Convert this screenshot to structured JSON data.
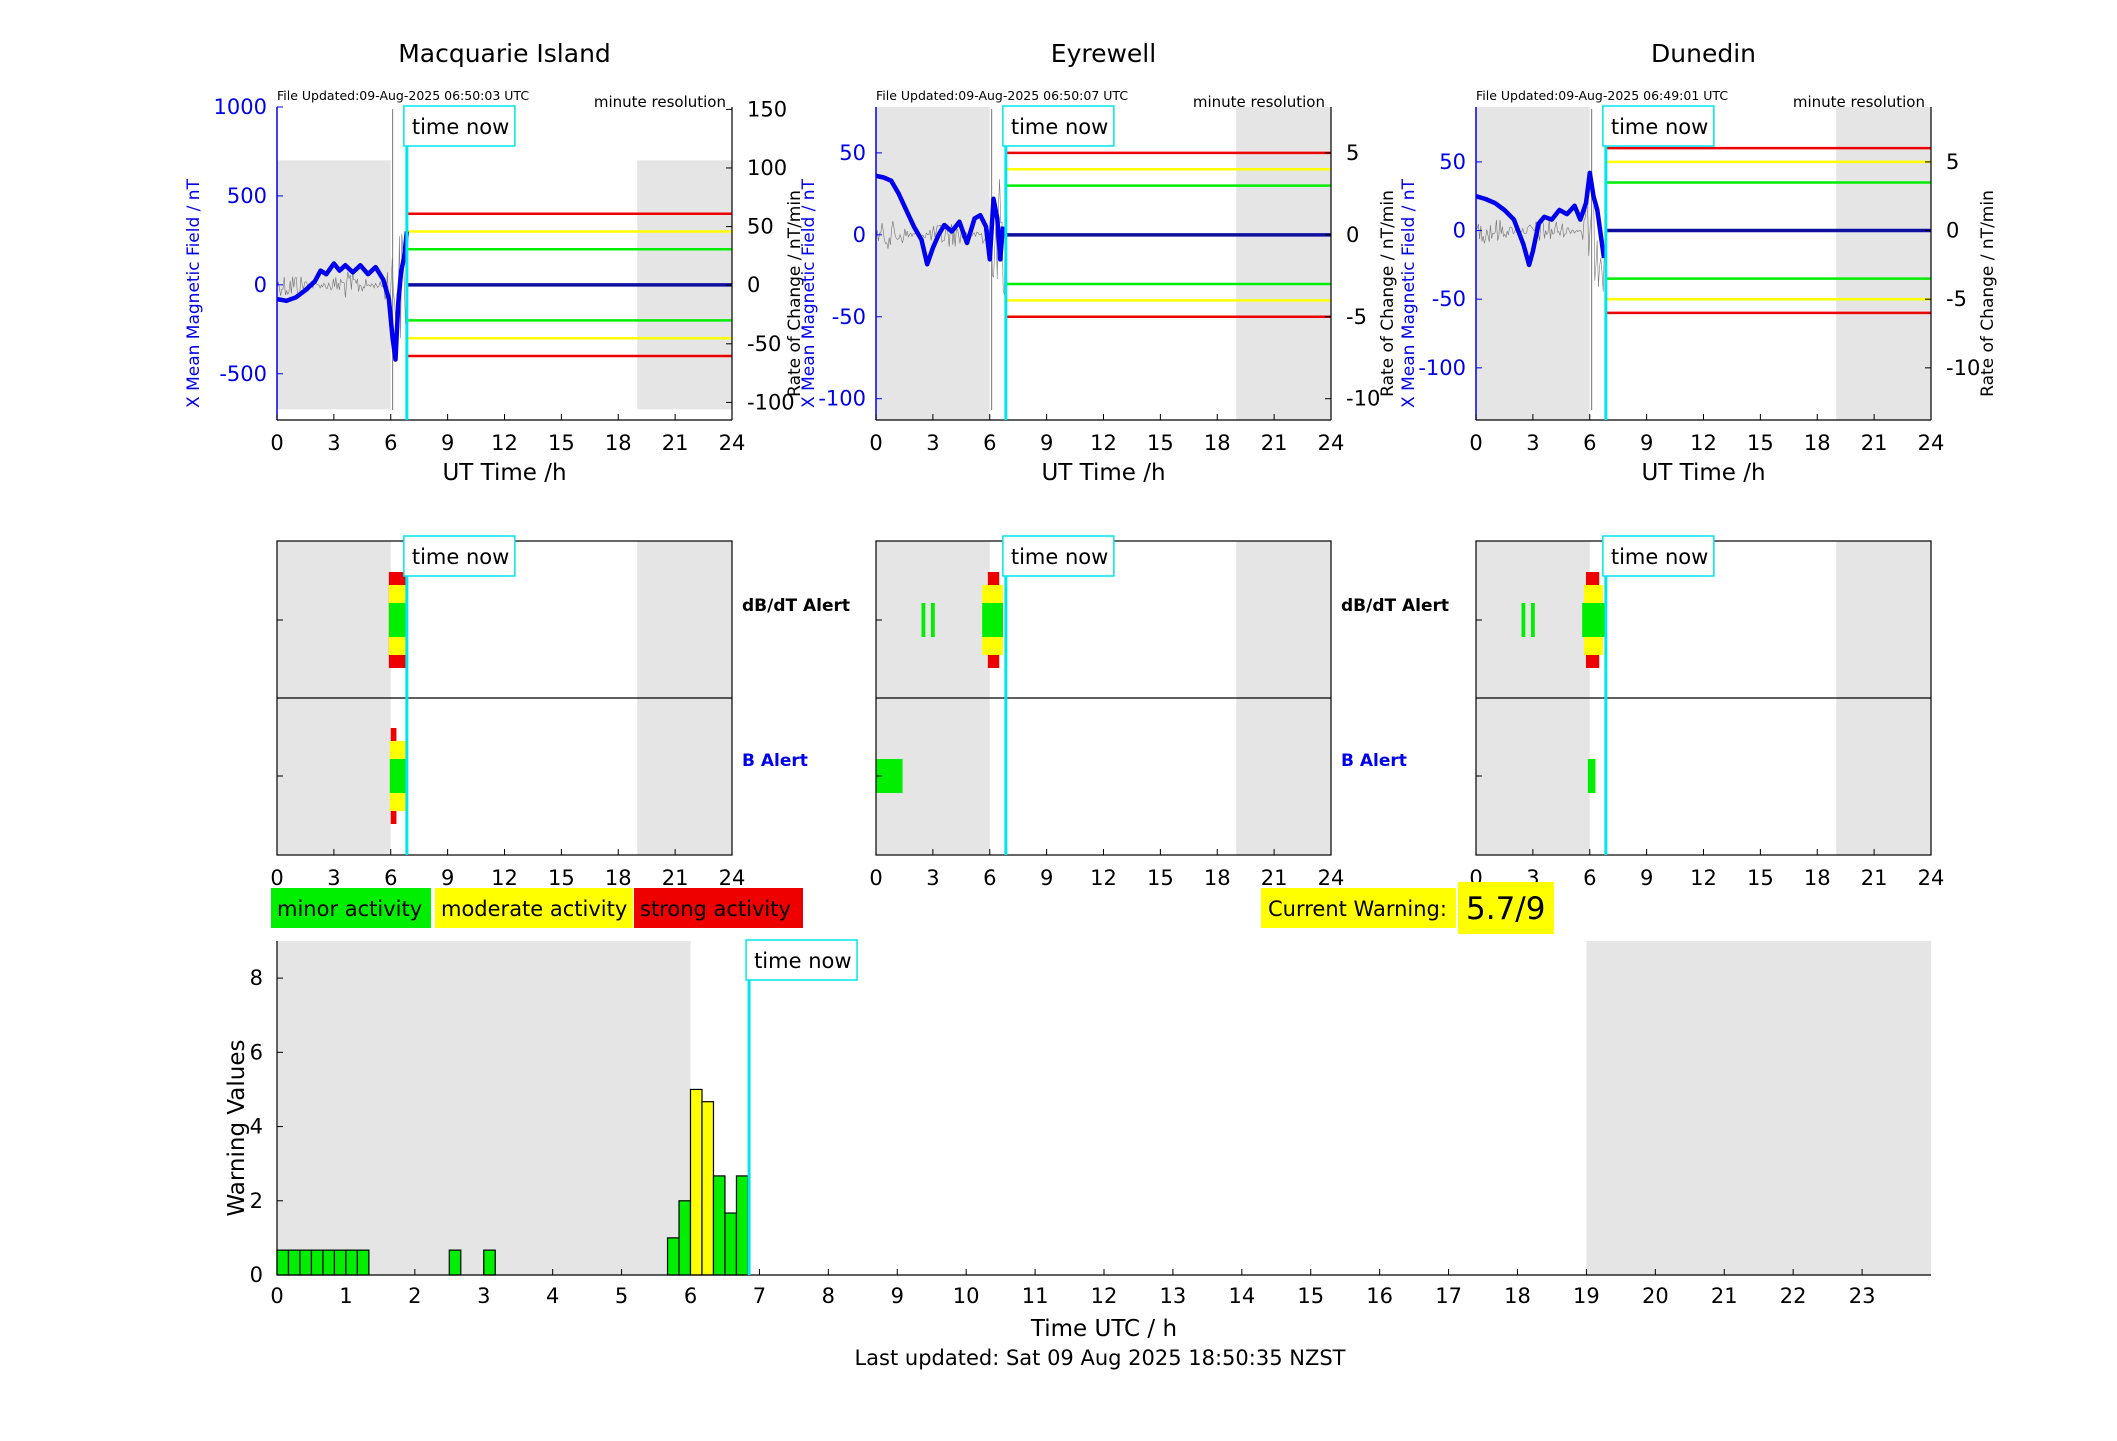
{
  "colors": {
    "blue": "#0000ee",
    "cyan": "#00e5ee",
    "red": "#ee0000",
    "yellow": "#ffff00",
    "green": "#00ee00",
    "night": "#e5e5e5",
    "black": "#000000"
  },
  "labels": {
    "time_now": "time now",
    "minute_resolution": "minute resolution",
    "ut_time": "UT Time /h",
    "db_alert": "dB/dT Alert",
    "b_alert": "B Alert",
    "rate_label_1": "Rate of Change / nT/min",
    "rate_label_2": "Rate of Change / nT/min",
    "rate_label_3": "Rate of Change / nT/min",
    "x_field_1": "X Mean Magnetic Field / nT",
    "x_field_2": "X Mean Magnetic Field / nT",
    "x_field_3": "X Mean Magnetic Field / nT"
  },
  "legend": {
    "minor": "minor activity",
    "moderate": "moderate activity",
    "strong": "strong activity"
  },
  "current_warning": {
    "label": "Current Warning:",
    "value": "5.7/9"
  },
  "footer": {
    "last_updated": "Last updated: Sat 09 Aug 2025 18:50:35 NZST"
  },
  "chart_data": [
    {
      "type": "line",
      "station": "Macquarie Island",
      "file_updated": "File Updated:09-Aug-2025 06:50:03 UTC",
      "xlabel": "UT Time /h",
      "ylabel": "X Mean Magnetic Field / nT",
      "y2label": "Rate of Change / nT/min",
      "xlim": [
        0,
        24
      ],
      "xticks": [
        0,
        3,
        6,
        9,
        12,
        15,
        18,
        21,
        24
      ],
      "ylim": [
        -760,
        1000
      ],
      "yticks": [
        -500,
        0,
        500,
        1000
      ],
      "y2lim": [
        -115,
        152
      ],
      "y2ticks": [
        -100,
        -50,
        0,
        50,
        100,
        150
      ],
      "y2_tick_labels": [
        "-100",
        "-50",
        "0",
        "50",
        "100",
        "150"
      ],
      "night_shading": [
        [
          0,
          6
        ],
        [
          19,
          24
        ]
      ],
      "night_ylim": [
        -700,
        700
      ],
      "time_now": 6.85,
      "thresholds": [
        {
          "color": "red",
          "values": [
            400,
            -400
          ]
        },
        {
          "color": "yellow",
          "values": [
            300,
            -300
          ]
        },
        {
          "color": "green",
          "values": [
            200,
            -200
          ]
        }
      ],
      "series": [
        {
          "color": "blue",
          "x": [
            0,
            0.5,
            1,
            1.5,
            2,
            2.3,
            2.6,
            3,
            3.3,
            3.6,
            4,
            4.4,
            4.8,
            5.2,
            5.6,
            5.9,
            6.1,
            6.25,
            6.4,
            6.55,
            6.7,
            6.85
          ],
          "y": [
            -80,
            -90,
            -70,
            -30,
            20,
            80,
            60,
            120,
            80,
            110,
            70,
            110,
            60,
            100,
            30,
            -80,
            -300,
            -420,
            -100,
            80,
            150,
            300
          ]
        }
      ]
    },
    {
      "type": "line",
      "station": "Eyrewell",
      "file_updated": "File Updated:09-Aug-2025 06:50:07 UTC",
      "xlabel": "UT Time /h",
      "ylabel": "X Mean Magnetic Field / nT",
      "y2label": "Rate of Change / nT/min",
      "xlim": [
        0,
        24
      ],
      "xticks": [
        0,
        3,
        6,
        9,
        12,
        15,
        18,
        21,
        24
      ],
      "ylim": [
        -113,
        78
      ],
      "yticks": [
        -100,
        -50,
        0,
        50
      ],
      "y2lim": [
        -11.3,
        7.8
      ],
      "y2ticks": [
        -10,
        -5,
        0,
        5
      ],
      "y2_tick_labels": [
        "-10",
        "-5",
        "0",
        "5"
      ],
      "night_shading": [
        [
          0,
          6
        ],
        [
          19,
          24
        ]
      ],
      "night_ylim": [
        -113,
        78
      ],
      "time_now": 6.85,
      "thresholds": [
        {
          "color": "red",
          "values": [
            50,
            -50
          ]
        },
        {
          "color": "yellow",
          "values": [
            40,
            -40
          ]
        },
        {
          "color": "green",
          "values": [
            30,
            -30
          ]
        }
      ],
      "series": [
        {
          "color": "blue",
          "x": [
            0,
            0.4,
            0.8,
            1.2,
            1.6,
            2.0,
            2.4,
            2.7,
            3.0,
            3.3,
            3.6,
            4.0,
            4.4,
            4.8,
            5.2,
            5.5,
            5.8,
            6.0,
            6.2,
            6.4,
            6.55,
            6.7
          ],
          "y": [
            36,
            35,
            33,
            25,
            15,
            5,
            -3,
            -18,
            -8,
            0,
            6,
            2,
            8,
            -5,
            10,
            12,
            5,
            -15,
            22,
            10,
            -15,
            5
          ]
        }
      ]
    },
    {
      "type": "line",
      "station": "Dunedin",
      "file_updated": "File Updated:09-Aug-2025 06:49:01 UTC",
      "xlabel": "UT Time /h",
      "ylabel": "X Mean Magnetic Field / nT",
      "y2label": "Rate of Change / nT/min",
      "xlim": [
        0,
        24
      ],
      "xticks": [
        0,
        3,
        6,
        9,
        12,
        15,
        18,
        21,
        24
      ],
      "ylim": [
        -138,
        90
      ],
      "yticks": [
        -100,
        -50,
        0,
        50
      ],
      "y2lim": [
        -13.8,
        9.0
      ],
      "y2ticks": [
        -10,
        -5,
        0,
        5
      ],
      "y2_tick_labels": [
        "-10",
        "-5",
        "0",
        "5"
      ],
      "night_shading": [
        [
          0,
          6
        ],
        [
          19,
          24
        ]
      ],
      "night_ylim": [
        -138,
        90
      ],
      "time_now": 6.85,
      "thresholds": [
        {
          "color": "red",
          "values": [
            60,
            -60
          ]
        },
        {
          "color": "yellow",
          "values": [
            50,
            -50
          ]
        },
        {
          "color": "green",
          "values": [
            35,
            -35
          ]
        }
      ],
      "series": [
        {
          "color": "blue",
          "x": [
            0,
            0.5,
            1,
            1.5,
            2.0,
            2.5,
            2.8,
            3.0,
            3.3,
            3.6,
            4.0,
            4.4,
            4.8,
            5.2,
            5.5,
            5.8,
            6.0,
            6.2,
            6.4,
            6.6,
            6.75
          ],
          "y": [
            25,
            23,
            20,
            15,
            8,
            -10,
            -25,
            -15,
            5,
            10,
            8,
            15,
            12,
            18,
            8,
            20,
            42,
            25,
            15,
            -5,
            -20
          ]
        }
      ]
    },
    {
      "type": "heatmap",
      "station": "Macquarie Island",
      "rows": [
        "dB/dT Alert",
        "B Alert"
      ],
      "xlim": [
        0,
        24
      ],
      "xticks": [
        0,
        3,
        6,
        9,
        12,
        15,
        18,
        21,
        24
      ],
      "time_now": 6.85,
      "night_shading": [
        [
          0,
          6
        ],
        [
          19,
          24
        ]
      ],
      "alerts": {
        "db": [
          {
            "x0": 5.9,
            "x1": 6.8,
            "level": "strong"
          },
          {
            "x0": 5.9,
            "x1": 6.8,
            "level": "moderate"
          },
          {
            "x0": 5.9,
            "x1": 6.8,
            "level": "minor"
          }
        ],
        "b": [
          {
            "x0": 6.0,
            "x1": 6.3,
            "level": "strong"
          },
          {
            "x0": 5.95,
            "x1": 6.8,
            "level": "moderate"
          },
          {
            "x0": 5.95,
            "x1": 6.8,
            "level": "minor"
          }
        ]
      }
    },
    {
      "type": "heatmap",
      "station": "Eyrewell",
      "rows": [
        "dB/dT Alert",
        "B Alert"
      ],
      "xlim": [
        0,
        24
      ],
      "xticks": [
        0,
        3,
        6,
        9,
        12,
        15,
        18,
        21,
        24
      ],
      "time_now": 6.85,
      "night_shading": [
        [
          0,
          6
        ],
        [
          19,
          24
        ]
      ],
      "alerts": {
        "db": [
          {
            "x0": 2.4,
            "x1": 2.6,
            "level": "minor"
          },
          {
            "x0": 2.9,
            "x1": 3.1,
            "level": "minor"
          },
          {
            "x0": 5.9,
            "x1": 6.5,
            "level": "strong"
          },
          {
            "x0": 5.6,
            "x1": 6.7,
            "level": "moderate"
          },
          {
            "x0": 5.6,
            "x1": 6.7,
            "level": "minor"
          }
        ],
        "b": [
          {
            "x0": 0,
            "x1": 1.4,
            "level": "minor"
          }
        ]
      }
    },
    {
      "type": "heatmap",
      "station": "Dunedin",
      "rows": [
        "dB/dT Alert",
        "B Alert"
      ],
      "xlim": [
        0,
        24
      ],
      "xticks": [
        0,
        3,
        6,
        9,
        12,
        15,
        18,
        21,
        24
      ],
      "time_now": 6.85,
      "night_shading": [
        [
          0,
          6
        ],
        [
          19,
          24
        ]
      ],
      "alerts": {
        "db": [
          {
            "x0": 2.4,
            "x1": 2.6,
            "level": "minor"
          },
          {
            "x0": 2.9,
            "x1": 3.1,
            "level": "minor"
          },
          {
            "x0": 5.8,
            "x1": 6.5,
            "level": "strong"
          },
          {
            "x0": 5.7,
            "x1": 6.7,
            "level": "moderate"
          },
          {
            "x0": 5.6,
            "x1": 6.8,
            "level": "minor"
          }
        ],
        "b": [
          {
            "x0": 5.9,
            "x1": 6.3,
            "level": "minor"
          }
        ]
      }
    },
    {
      "type": "bar",
      "xlabel": "Time UTC / h",
      "ylabel": "Warning Values",
      "xlim": [
        0,
        24
      ],
      "xticks": [
        0,
        1,
        2,
        3,
        4,
        5,
        6,
        7,
        8,
        9,
        10,
        11,
        12,
        13,
        14,
        15,
        16,
        17,
        18,
        19,
        20,
        21,
        22,
        23
      ],
      "ylim": [
        0,
        9
      ],
      "yticks": [
        0,
        2,
        4,
        6,
        8
      ],
      "time_now": 6.85,
      "night_shading": [
        [
          0,
          6
        ],
        [
          19,
          24
        ]
      ],
      "bar_width": 0.1667,
      "bars": [
        {
          "x": 0.0,
          "value": 0.67,
          "level": "minor"
        },
        {
          "x": 0.1667,
          "value": 0.67,
          "level": "minor"
        },
        {
          "x": 0.3333,
          "value": 0.67,
          "level": "minor"
        },
        {
          "x": 0.5,
          "value": 0.67,
          "level": "minor"
        },
        {
          "x": 0.6667,
          "value": 0.67,
          "level": "minor"
        },
        {
          "x": 0.8333,
          "value": 0.67,
          "level": "minor"
        },
        {
          "x": 1.0,
          "value": 0.67,
          "level": "minor"
        },
        {
          "x": 1.1667,
          "value": 0.67,
          "level": "minor"
        },
        {
          "x": 2.5,
          "value": 0.67,
          "level": "minor"
        },
        {
          "x": 3.0,
          "value": 0.67,
          "level": "minor"
        },
        {
          "x": 5.6667,
          "value": 1.0,
          "level": "minor"
        },
        {
          "x": 5.8333,
          "value": 2.0,
          "level": "minor"
        },
        {
          "x": 6.0,
          "value": 5.0,
          "level": "moderate"
        },
        {
          "x": 6.1667,
          "value": 4.67,
          "level": "moderate"
        },
        {
          "x": 6.3333,
          "value": 2.67,
          "level": "minor"
        },
        {
          "x": 6.5,
          "value": 1.67,
          "level": "minor"
        },
        {
          "x": 6.6667,
          "value": 2.67,
          "level": "minor"
        }
      ]
    }
  ]
}
